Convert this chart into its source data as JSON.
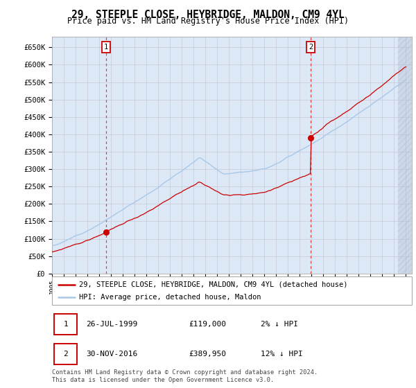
{
  "title": "29, STEEPLE CLOSE, HEYBRIDGE, MALDON, CM9 4YL",
  "subtitle": "Price paid vs. HM Land Registry's House Price Index (HPI)",
  "ytick_labels": [
    "£0",
    "£50K",
    "£100K",
    "£150K",
    "£200K",
    "£250K",
    "£300K",
    "£350K",
    "£400K",
    "£450K",
    "£500K",
    "£550K",
    "£600K",
    "£650K"
  ],
  "yticks": [
    0,
    50000,
    100000,
    150000,
    200000,
    250000,
    300000,
    350000,
    400000,
    450000,
    500000,
    550000,
    600000,
    650000
  ],
  "sale1_date": 1999.57,
  "sale1_price": 119000,
  "sale2_date": 2016.92,
  "sale2_price": 389950,
  "hpi_line_color": "#a8c8e8",
  "price_line_color": "#cc0000",
  "sale_dot_color": "#cc0000",
  "grid_color": "#c8c8d8",
  "background_color": "#dce8f5",
  "legend_label1": "29, STEEPLE CLOSE, HEYBRIDGE, MALDON, CM9 4YL (detached house)",
  "legend_label2": "HPI: Average price, detached house, Maldon",
  "table_row1": [
    "1",
    "26-JUL-1999",
    "£119,000",
    "2% ↓ HPI"
  ],
  "table_row2": [
    "2",
    "30-NOV-2016",
    "£389,950",
    "12% ↓ HPI"
  ],
  "footnote": "Contains HM Land Registry data © Crown copyright and database right 2024.\nThis data is licensed under the Open Government Licence v3.0.",
  "xmin": 1995.0,
  "xmax": 2025.5,
  "ymin": 0,
  "ymax": 680000
}
